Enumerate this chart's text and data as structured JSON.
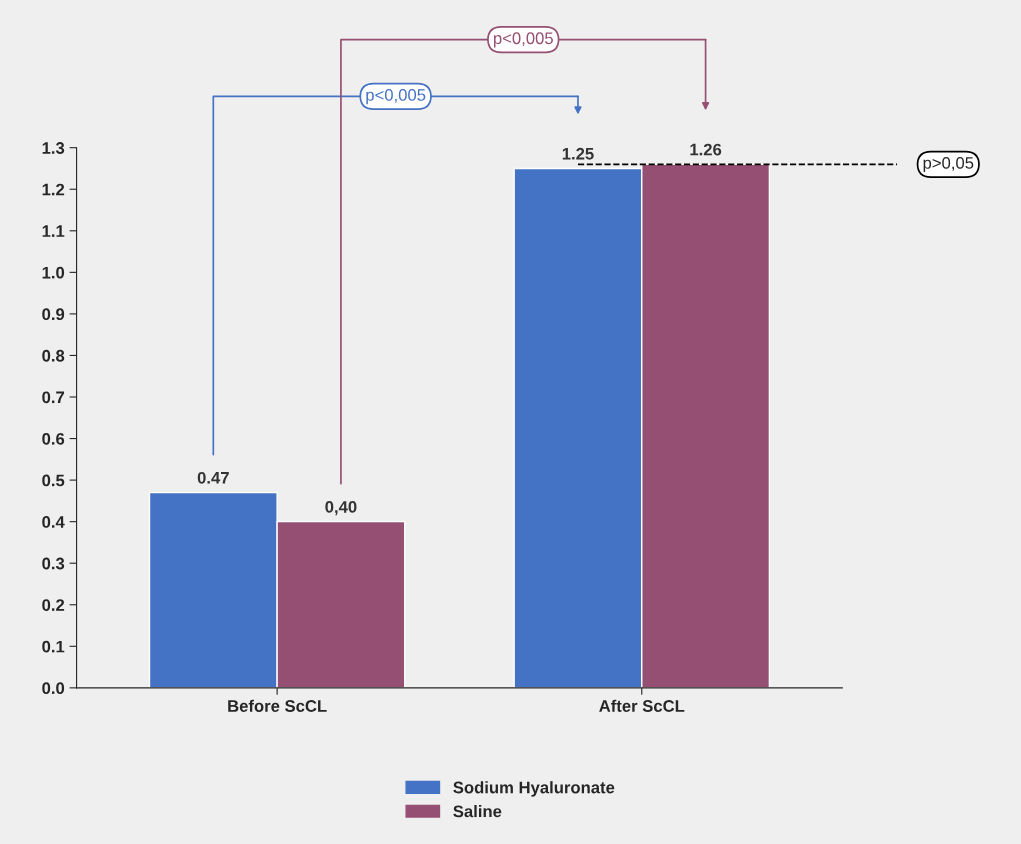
{
  "chart_data": {
    "type": "bar",
    "categories": [
      "Before ScCL",
      "After ScCL"
    ],
    "series": [
      {
        "name": "Sodium Hyaluronate",
        "color": "#4472c4",
        "values": [
          0.47,
          1.25
        ],
        "value_labels": [
          "0.47",
          "1.25"
        ]
      },
      {
        "name": "Saline",
        "color": "#954f72",
        "values": [
          0.4,
          1.26
        ],
        "value_labels": [
          "0,40",
          "1.26"
        ]
      }
    ],
    "ylim": [
      0,
      1.3
    ],
    "yticks": [
      {
        "value": 0,
        "label": "0.0"
      },
      0.1,
      0.2,
      0.3,
      0.4,
      0.5,
      0.6,
      0.7,
      0.8,
      0.9,
      {
        "value": 1,
        "label": "1.0"
      },
      1.1,
      1.2,
      1.3
    ],
    "annotations": [
      "p<0,005",
      "p<0,005",
      "p>0,05"
    ],
    "grid": false,
    "legend": "bottom"
  }
}
